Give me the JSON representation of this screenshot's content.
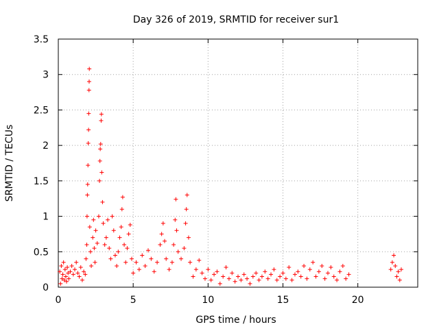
{
  "chart_data": {
    "type": "scatter",
    "title": "Day 326 of 2019, SRMTID for receiver sur1",
    "xlabel": "GPS time / hours",
    "ylabel": "SRMTID / TECUs",
    "xlim": [
      0,
      24
    ],
    "ylim": [
      0,
      3.5
    ],
    "x_ticks": [
      0,
      5,
      10,
      15,
      20
    ],
    "x_tick_labels": [
      "0",
      "5",
      "10",
      "15",
      "20"
    ],
    "y_ticks": [
      0,
      0.5,
      1,
      1.5,
      2,
      2.5,
      3,
      3.5
    ],
    "y_tick_labels": [
      "0",
      "0.5",
      "1",
      "1.5",
      "2",
      "2.5",
      "3",
      "3.5"
    ],
    "grid": true,
    "legend": "none",
    "marker": "plus",
    "color": "#ff0000",
    "series": [
      {
        "name": "sur1",
        "points": [
          [
            0.1,
            0.22
          ],
          [
            0.15,
            0.05
          ],
          [
            0.2,
            0.3
          ],
          [
            0.25,
            0.12
          ],
          [
            0.3,
            0.18
          ],
          [
            0.35,
            0.35
          ],
          [
            0.4,
            0.1
          ],
          [
            0.45,
            0.25
          ],
          [
            0.5,
            0.15
          ],
          [
            0.55,
            0.08
          ],
          [
            0.6,
            0.28
          ],
          [
            0.65,
            0.2
          ],
          [
            0.7,
            0.12
          ],
          [
            0.8,
            0.22
          ],
          [
            0.9,
            0.3
          ],
          [
            1.0,
            0.18
          ],
          [
            1.1,
            0.25
          ],
          [
            1.2,
            0.35
          ],
          [
            1.3,
            0.2
          ],
          [
            1.4,
            0.15
          ],
          [
            1.5,
            0.28
          ],
          [
            1.6,
            0.1
          ],
          [
            1.7,
            0.22
          ],
          [
            1.8,
            0.18
          ],
          [
            1.85,
            0.4
          ],
          [
            1.9,
            0.6
          ],
          [
            1.92,
            1.0
          ],
          [
            1.94,
            1.3
          ],
          [
            1.96,
            1.45
          ],
          [
            1.98,
            1.72
          ],
          [
            2.0,
            2.03
          ],
          [
            2.02,
            2.22
          ],
          [
            2.03,
            2.45
          ],
          [
            2.05,
            2.78
          ],
          [
            2.06,
            2.9
          ],
          [
            2.07,
            3.08
          ],
          [
            2.1,
            0.85
          ],
          [
            2.15,
            0.5
          ],
          [
            2.2,
            0.3
          ],
          [
            2.3,
            0.7
          ],
          [
            2.35,
            0.95
          ],
          [
            2.4,
            0.55
          ],
          [
            2.45,
            0.35
          ],
          [
            2.5,
            0.8
          ],
          [
            2.6,
            0.62
          ],
          [
            2.7,
            1.0
          ],
          [
            2.75,
            1.5
          ],
          [
            2.78,
            1.78
          ],
          [
            2.8,
            1.95
          ],
          [
            2.83,
            2.02
          ],
          [
            2.86,
            2.35
          ],
          [
            2.88,
            2.44
          ],
          [
            2.9,
            1.62
          ],
          [
            2.95,
            1.2
          ],
          [
            3.0,
            0.9
          ],
          [
            3.1,
            0.6
          ],
          [
            3.2,
            0.7
          ],
          [
            3.3,
            0.95
          ],
          [
            3.4,
            0.55
          ],
          [
            3.5,
            0.4
          ],
          [
            3.6,
            1.0
          ],
          [
            3.7,
            0.8
          ],
          [
            3.8,
            0.45
          ],
          [
            3.9,
            0.3
          ],
          [
            4.0,
            0.5
          ],
          [
            4.1,
            0.7
          ],
          [
            4.2,
            0.85
          ],
          [
            4.25,
            1.1
          ],
          [
            4.3,
            1.27
          ],
          [
            4.4,
            0.6
          ],
          [
            4.5,
            0.35
          ],
          [
            4.6,
            0.55
          ],
          [
            4.7,
            0.75
          ],
          [
            4.8,
            0.88
          ],
          [
            4.9,
            0.4
          ],
          [
            5.0,
            0.2
          ],
          [
            5.2,
            0.35
          ],
          [
            5.4,
            0.25
          ],
          [
            5.6,
            0.45
          ],
          [
            5.8,
            0.3
          ],
          [
            6.0,
            0.52
          ],
          [
            6.2,
            0.4
          ],
          [
            6.4,
            0.22
          ],
          [
            6.6,
            0.35
          ],
          [
            6.8,
            0.6
          ],
          [
            6.9,
            0.75
          ],
          [
            7.0,
            0.9
          ],
          [
            7.1,
            0.65
          ],
          [
            7.2,
            0.4
          ],
          [
            7.4,
            0.25
          ],
          [
            7.6,
            0.35
          ],
          [
            7.7,
            0.6
          ],
          [
            7.8,
            0.95
          ],
          [
            7.85,
            1.24
          ],
          [
            7.9,
            0.8
          ],
          [
            8.0,
            0.5
          ],
          [
            8.2,
            0.4
          ],
          [
            8.4,
            0.55
          ],
          [
            8.5,
            0.9
          ],
          [
            8.55,
            1.1
          ],
          [
            8.6,
            1.3
          ],
          [
            8.7,
            0.7
          ],
          [
            8.8,
            0.35
          ],
          [
            9.0,
            0.15
          ],
          [
            9.2,
            0.25
          ],
          [
            9.4,
            0.38
          ],
          [
            9.6,
            0.2
          ],
          [
            9.8,
            0.12
          ],
          [
            10.0,
            0.25
          ],
          [
            10.2,
            0.1
          ],
          [
            10.4,
            0.18
          ],
          [
            10.6,
            0.22
          ],
          [
            10.8,
            0.05
          ],
          [
            11.0,
            0.15
          ],
          [
            11.2,
            0.28
          ],
          [
            11.4,
            0.12
          ],
          [
            11.6,
            0.2
          ],
          [
            11.8,
            0.08
          ],
          [
            12.0,
            0.15
          ],
          [
            12.2,
            0.1
          ],
          [
            12.4,
            0.18
          ],
          [
            12.6,
            0.12
          ],
          [
            12.8,
            0.05
          ],
          [
            13.0,
            0.15
          ],
          [
            13.2,
            0.2
          ],
          [
            13.4,
            0.1
          ],
          [
            13.6,
            0.15
          ],
          [
            13.8,
            0.22
          ],
          [
            14.0,
            0.12
          ],
          [
            14.2,
            0.18
          ],
          [
            14.4,
            0.25
          ],
          [
            14.6,
            0.1
          ],
          [
            14.8,
            0.15
          ],
          [
            15.0,
            0.2
          ],
          [
            15.2,
            0.12
          ],
          [
            15.4,
            0.28
          ],
          [
            15.6,
            0.1
          ],
          [
            15.8,
            0.18
          ],
          [
            16.0,
            0.22
          ],
          [
            16.2,
            0.15
          ],
          [
            16.4,
            0.3
          ],
          [
            16.6,
            0.12
          ],
          [
            16.8,
            0.25
          ],
          [
            17.0,
            0.35
          ],
          [
            17.2,
            0.15
          ],
          [
            17.4,
            0.22
          ],
          [
            17.6,
            0.3
          ],
          [
            17.8,
            0.12
          ],
          [
            18.0,
            0.2
          ],
          [
            18.2,
            0.28
          ],
          [
            18.4,
            0.15
          ],
          [
            18.6,
            0.1
          ],
          [
            18.8,
            0.22
          ],
          [
            19.0,
            0.3
          ],
          [
            19.2,
            0.12
          ],
          [
            19.4,
            0.18
          ],
          [
            22.2,
            0.25
          ],
          [
            22.3,
            0.35
          ],
          [
            22.4,
            0.45
          ],
          [
            22.5,
            0.3
          ],
          [
            22.6,
            0.15
          ],
          [
            22.7,
            0.22
          ],
          [
            22.8,
            0.1
          ],
          [
            22.9,
            0.25
          ]
        ]
      }
    ]
  }
}
